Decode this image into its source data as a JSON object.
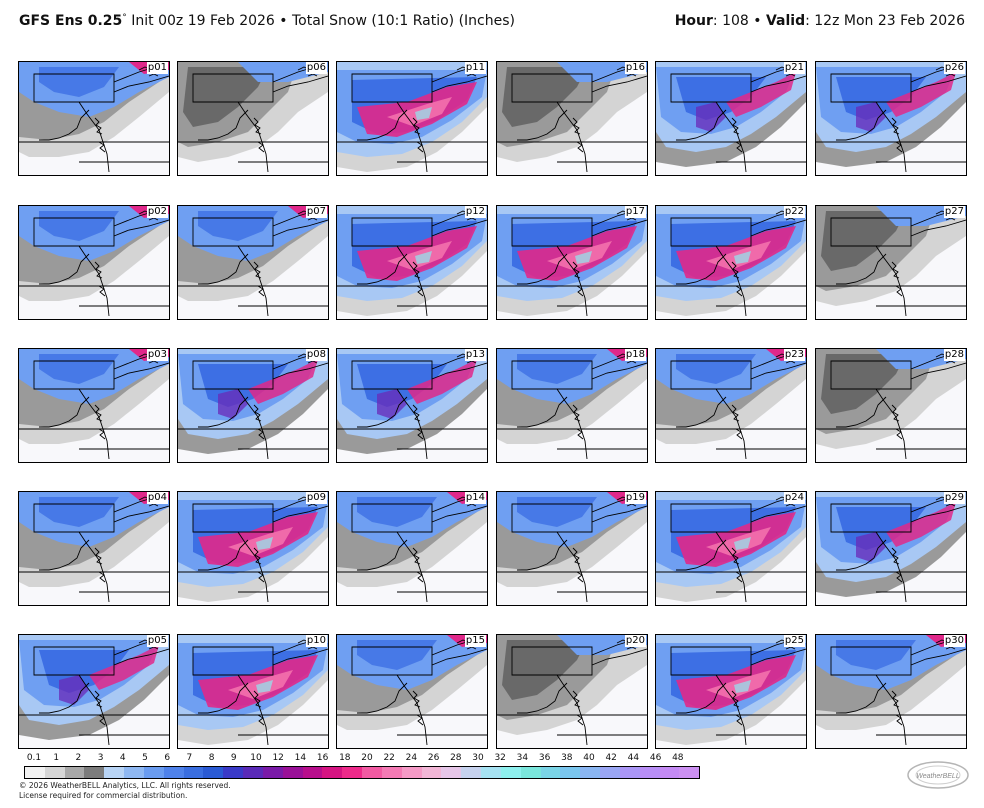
{
  "header": {
    "model": "GFS Ens 0.25",
    "degree": "°",
    "run": "Init 00z 19 Feb 2026",
    "bullet": "•",
    "field": "Total Snow (10:1 Ratio) (Inches)",
    "hour_label": "Hour",
    "hour_value": ": 108",
    "valid_label": "Valid",
    "valid_value": ": 12z Mon 23 Feb 2026"
  },
  "panels": [
    {
      "label": "p01",
      "pattern": 1
    },
    {
      "label": "p06",
      "pattern": 0
    },
    {
      "label": "p11",
      "pattern": 3
    },
    {
      "label": "p16",
      "pattern": 0
    },
    {
      "label": "p21",
      "pattern": 2
    },
    {
      "label": "p26",
      "pattern": 2
    },
    {
      "label": "p02",
      "pattern": 1
    },
    {
      "label": "p07",
      "pattern": 1
    },
    {
      "label": "p12",
      "pattern": 3
    },
    {
      "label": "p17",
      "pattern": 3
    },
    {
      "label": "p22",
      "pattern": 3
    },
    {
      "label": "p27",
      "pattern": 0
    },
    {
      "label": "p03",
      "pattern": 1
    },
    {
      "label": "p08",
      "pattern": 2
    },
    {
      "label": "p13",
      "pattern": 2
    },
    {
      "label": "p18",
      "pattern": 1
    },
    {
      "label": "p23",
      "pattern": 1
    },
    {
      "label": "p28",
      "pattern": 0
    },
    {
      "label": "p04",
      "pattern": 1
    },
    {
      "label": "p09",
      "pattern": 3
    },
    {
      "label": "p14",
      "pattern": 1
    },
    {
      "label": "p19",
      "pattern": 1
    },
    {
      "label": "p24",
      "pattern": 3
    },
    {
      "label": "p29",
      "pattern": 2
    },
    {
      "label": "p05",
      "pattern": 2
    },
    {
      "label": "p10",
      "pattern": 3
    },
    {
      "label": "p15",
      "pattern": 1
    },
    {
      "label": "p20",
      "pattern": 0
    },
    {
      "label": "p25",
      "pattern": 3
    },
    {
      "label": "p30",
      "pattern": 1
    }
  ],
  "colorbar": {
    "ticks": [
      "0.1",
      "1",
      "2",
      "3",
      "4",
      "5",
      "6",
      "7",
      "8",
      "9",
      "10",
      "12",
      "14",
      "16",
      "18",
      "20",
      "22",
      "24",
      "26",
      "28",
      "30",
      "32",
      "34",
      "36",
      "38",
      "40",
      "42",
      "44",
      "46",
      "48"
    ],
    "colors": [
      "#f2f2f2",
      "#d6d6d6",
      "#a8a8a8",
      "#7c7c7c",
      "#b8d4f5",
      "#8fb8f2",
      "#6a9cf0",
      "#4f82ea",
      "#3a6ee0",
      "#2a5ad4",
      "#3a3ac8",
      "#5a2ab8",
      "#7a1aa8",
      "#9a1098",
      "#b80e8c",
      "#d61482",
      "#ee2a8a",
      "#f25aa2",
      "#f47ab4",
      "#f59ac6",
      "#f2b6d6",
      "#e6c6e8",
      "#c6d2ee",
      "#a6e2f2",
      "#8ef0ee",
      "#7ae6dc",
      "#7ad4e6",
      "#7ac6ee",
      "#8ab6f2",
      "#9aa6f4",
      "#aa96f6",
      "#b88ef6",
      "#c48af4",
      "#cc90f2"
    ]
  },
  "footer": {
    "line1": "© 2026 WeatherBELL Analytics, LLC. All rights reserved.",
    "line2": "License required for commercial distribution."
  },
  "logo": {
    "text": "WeatherBELL"
  }
}
